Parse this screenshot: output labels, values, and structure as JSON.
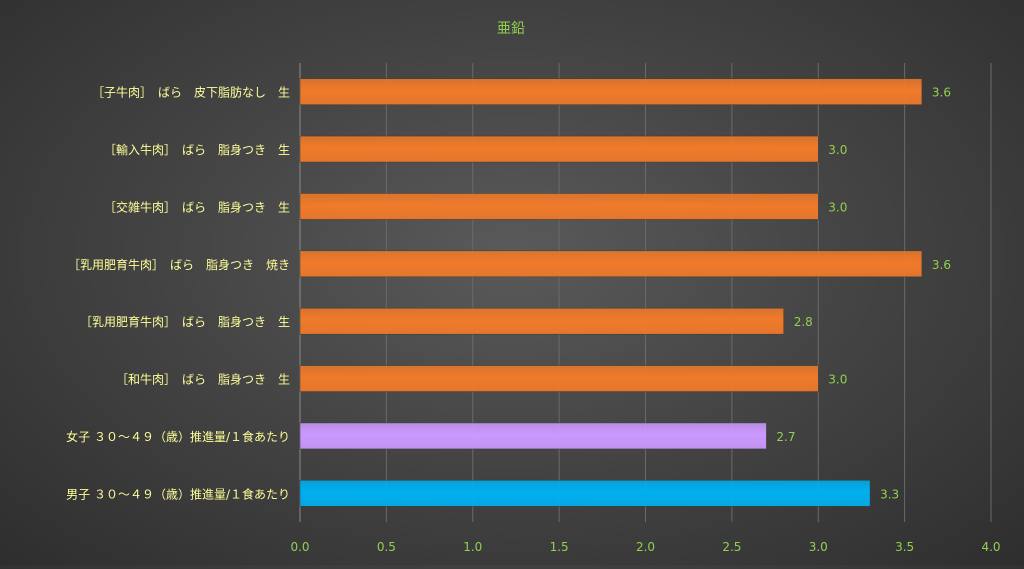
{
  "chart_data": {
    "type": "bar",
    "orientation": "horizontal",
    "title": "亜鉛",
    "categories": [
      "［子牛肉］　ばら　皮下脂肪なし　生",
      "［輸入牛肉］　ばら　脂身つき　生",
      "［交雑牛肉］　ばら　脂身つき　生",
      "［乳用肥育牛肉］　ばら　脂身つき　焼き",
      "［乳用肥育牛肉］　ばら　脂身つき　生",
      "［和牛肉］　ばら　脂身つき　生",
      "女子 ３０～４９（歳）推進量/１食あたり",
      "男子 ３０～４９（歳）推進量/１食あたり"
    ],
    "values": [
      3.6,
      3.0,
      3.0,
      3.6,
      2.8,
      3.0,
      2.7,
      3.3
    ],
    "value_labels": [
      "3.6",
      "3.0",
      "3.0",
      "3.6",
      "2.8",
      "3.0",
      "2.7",
      "3.3"
    ],
    "bar_colors": [
      "#f07a2a",
      "#f07a2a",
      "#f07a2a",
      "#f07a2a",
      "#f07a2a",
      "#f07a2a",
      "#cc99ff",
      "#00b0f0"
    ],
    "xlim": [
      0,
      4
    ],
    "x_ticks": [
      "0.0",
      "0.5",
      "1.0",
      "1.5",
      "2.0",
      "2.5",
      "3.0",
      "3.5",
      "4.0"
    ],
    "xlabel": "",
    "ylabel": "",
    "grid": true,
    "colors": {
      "title": "#92d050",
      "tick_labels": "#92d050",
      "category_labels": "#ffff99",
      "value_labels": "#92d050",
      "gridlines": "#6a6a6a"
    }
  }
}
